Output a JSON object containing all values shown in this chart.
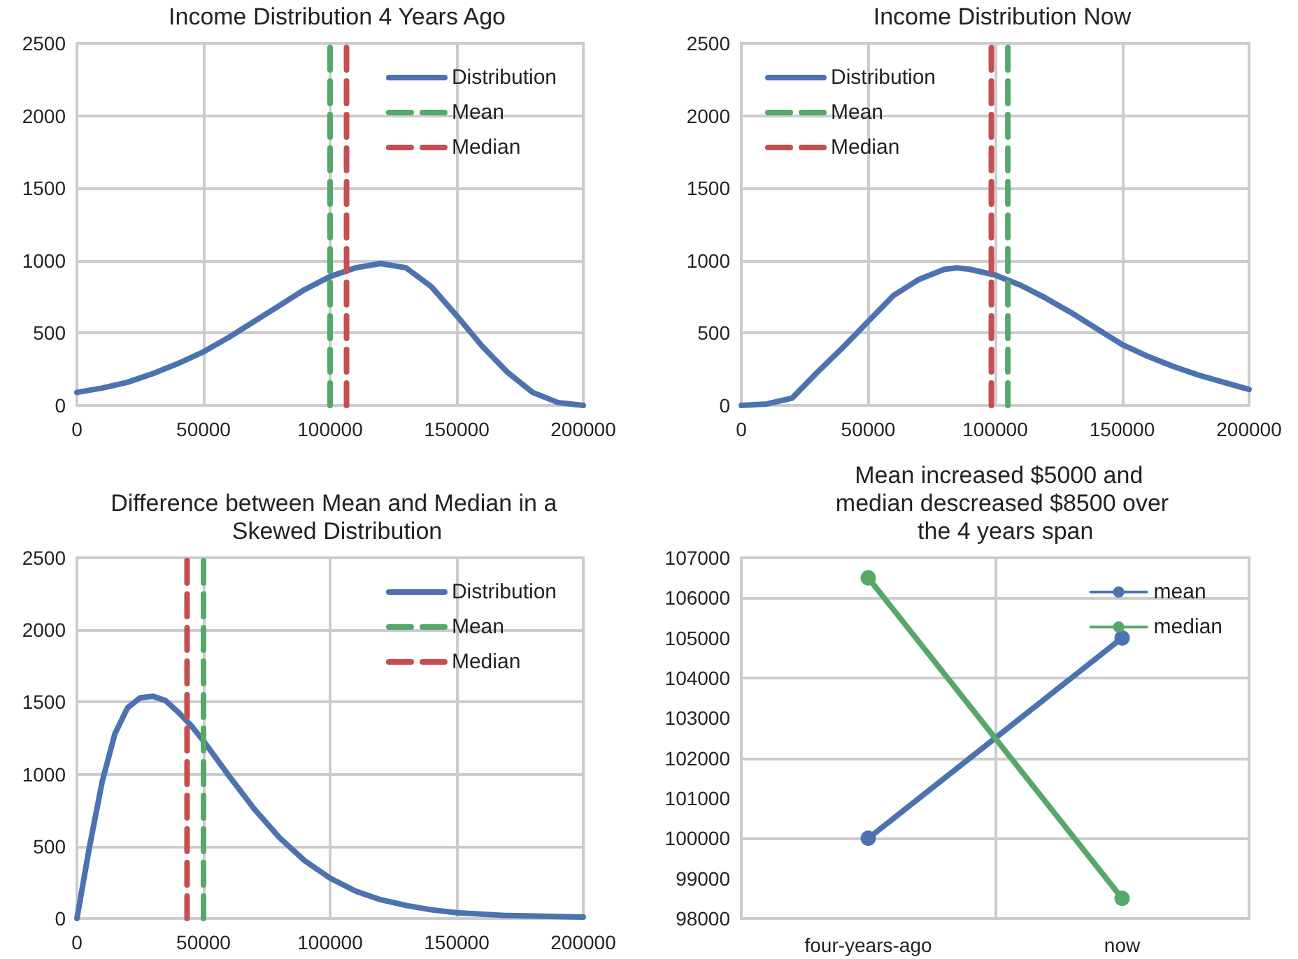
{
  "chart_data": [
    {
      "type": "line",
      "title": "Income Distribution 4 Years Ago",
      "x": [
        0,
        10000,
        20000,
        30000,
        40000,
        50000,
        60000,
        70000,
        80000,
        90000,
        100000,
        110000,
        120000,
        130000,
        140000,
        150000,
        160000,
        170000,
        180000,
        190000,
        200000
      ],
      "series": [
        {
          "name": "Distribution",
          "color": "#4c72b0",
          "values": [
            90,
            120,
            160,
            220,
            290,
            370,
            470,
            580,
            690,
            800,
            890,
            950,
            980,
            950,
            820,
            620,
            410,
            230,
            90,
            20,
            0
          ]
        },
        {
          "name": "Mean",
          "color": "#55a868",
          "line_style": "dashed",
          "x": [
            100000,
            100000
          ],
          "values": [
            0,
            2500
          ]
        },
        {
          "name": "Median",
          "color": "#c44e52",
          "line_style": "dashed",
          "x": [
            106500,
            106500
          ],
          "values": [
            0,
            2500
          ]
        }
      ],
      "xlim": [
        0,
        200000
      ],
      "xticks": [
        0,
        50000,
        100000,
        150000,
        200000
      ],
      "ylim": [
        0,
        2500
      ],
      "yticks": [
        0,
        500,
        1000,
        1500,
        2000,
        2500
      ],
      "grid": true,
      "legend": "top right",
      "marker": "none"
    },
    {
      "type": "line",
      "title": "Income Distribution Now",
      "x": [
        0,
        10000,
        20000,
        30000,
        40000,
        50000,
        60000,
        70000,
        80000,
        85000,
        90000,
        100000,
        110000,
        120000,
        130000,
        140000,
        150000,
        160000,
        170000,
        180000,
        190000,
        200000
      ],
      "series": [
        {
          "name": "Distribution",
          "color": "#4c72b0",
          "values": [
            0,
            10,
            50,
            230,
            400,
            580,
            760,
            870,
            940,
            950,
            940,
            900,
            830,
            740,
            640,
            530,
            420,
            340,
            270,
            210,
            160,
            110
          ]
        },
        {
          "name": "Mean",
          "color": "#55a868",
          "line_style": "dashed",
          "x": [
            105000,
            105000
          ],
          "values": [
            0,
            2500
          ]
        },
        {
          "name": "Median",
          "color": "#c44e52",
          "line_style": "dashed",
          "x": [
            98500,
            98500
          ],
          "values": [
            0,
            2500
          ]
        }
      ],
      "xlim": [
        0,
        200000
      ],
      "xticks": [
        0,
        50000,
        100000,
        150000,
        200000
      ],
      "ylim": [
        0,
        2500
      ],
      "yticks": [
        0,
        500,
        1000,
        1500,
        2000,
        2500
      ],
      "grid": true,
      "legend": "top left",
      "marker": "none"
    },
    {
      "type": "line",
      "title": "Difference between Mean and Median in a Skewed Distribution",
      "x": [
        0,
        5000,
        10000,
        15000,
        20000,
        25000,
        30000,
        35000,
        40000,
        45000,
        50000,
        60000,
        70000,
        80000,
        90000,
        100000,
        110000,
        120000,
        130000,
        140000,
        150000,
        170000,
        200000
      ],
      "series": [
        {
          "name": "Distribution",
          "color": "#4c72b0",
          "values": [
            0,
            500,
            950,
            1280,
            1460,
            1530,
            1540,
            1510,
            1430,
            1340,
            1230,
            990,
            760,
            560,
            400,
            280,
            190,
            130,
            90,
            60,
            40,
            20,
            10
          ]
        },
        {
          "name": "Mean",
          "color": "#55a868",
          "line_style": "dashed",
          "x": [
            50000,
            50000
          ],
          "values": [
            0,
            2500
          ]
        },
        {
          "name": "Median",
          "color": "#c44e52",
          "line_style": "dashed",
          "x": [
            43500,
            43500
          ],
          "values": [
            0,
            2500
          ]
        }
      ],
      "xlim": [
        0,
        200000
      ],
      "xticks": [
        0,
        50000,
        100000,
        150000,
        200000
      ],
      "ylim": [
        0,
        2500
      ],
      "yticks": [
        0,
        500,
        1000,
        1500,
        2000,
        2500
      ],
      "grid": true,
      "legend": "top right",
      "marker": "none"
    },
    {
      "type": "line",
      "title": "Mean increased $5000 and median descreased $8500 over the 4 years span",
      "categories": [
        "four-years-ago",
        "now"
      ],
      "series": [
        {
          "name": "mean",
          "color": "#4c72b0",
          "values": [
            100000,
            105000
          ]
        },
        {
          "name": "median",
          "color": "#55a868",
          "values": [
            106500,
            98500
          ]
        }
      ],
      "ylim": [
        98000,
        107000
      ],
      "yticks": [
        98000,
        99000,
        100000,
        101000,
        102000,
        103000,
        104000,
        105000,
        106000,
        107000
      ],
      "grid": true,
      "legend": "top right",
      "marker": "circle"
    }
  ]
}
